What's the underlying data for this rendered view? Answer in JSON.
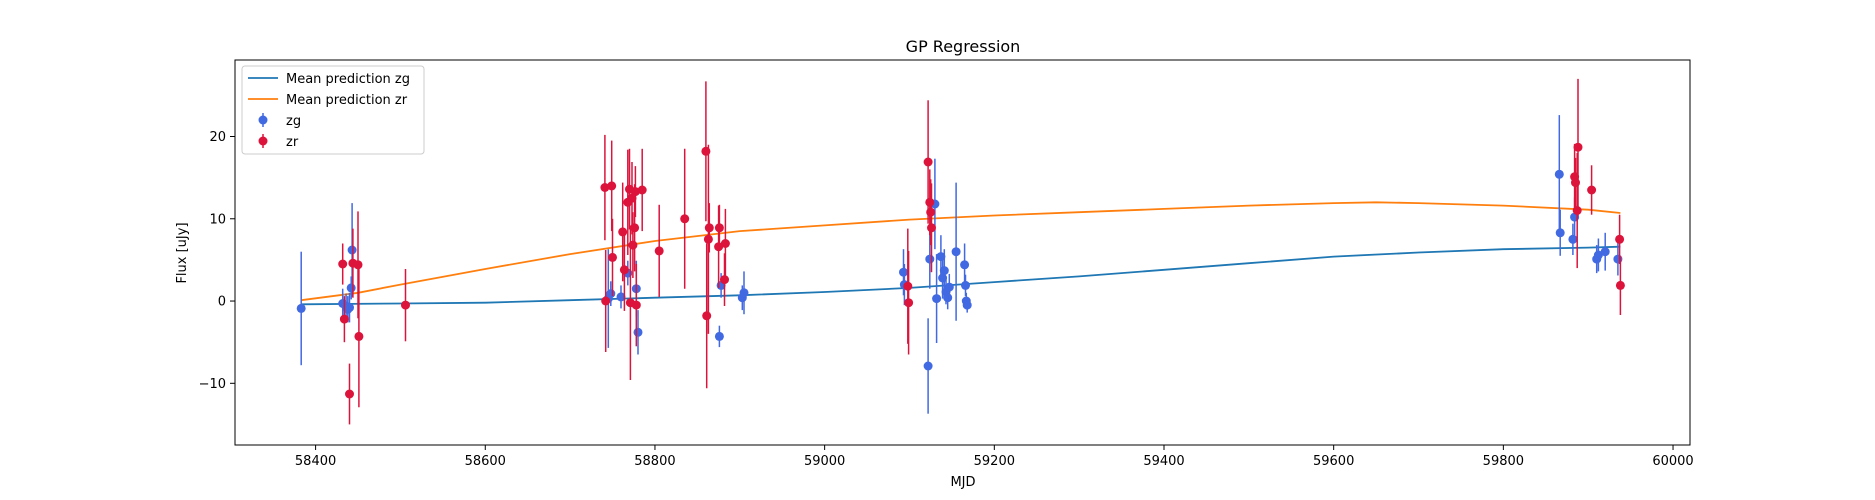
{
  "chart_data": {
    "type": "scatter",
    "title": "GP Regression",
    "xlabel": "MJD",
    "ylabel": "Flux [uJy]",
    "xlim": [
      58305,
      60020
    ],
    "ylim": [
      -17.5,
      29.3
    ],
    "xticks": [
      58400,
      58600,
      58800,
      59000,
      59200,
      59400,
      59600,
      59800,
      60000
    ],
    "yticks": [
      -10,
      0,
      10,
      20
    ],
    "grid": false,
    "legend_position": "top-left",
    "series": [
      {
        "name": "Mean prediction zg",
        "kind": "line",
        "color": "#1f77b4",
        "x": [
          58383,
          58500,
          58600,
          58700,
          58800,
          58900,
          59000,
          59100,
          59200,
          59300,
          59400,
          59500,
          59600,
          59700,
          59800,
          59900,
          59938
        ],
        "y": [
          -0.4,
          -0.3,
          -0.2,
          0.1,
          0.4,
          0.7,
          1.1,
          1.6,
          2.3,
          3.0,
          3.8,
          4.6,
          5.4,
          5.9,
          6.3,
          6.5,
          6.6
        ]
      },
      {
        "name": "Mean prediction zr",
        "kind": "line",
        "color": "#ff7f0e",
        "x": [
          58383,
          58450,
          58500,
          58600,
          58700,
          58800,
          58900,
          59000,
          59100,
          59200,
          59300,
          59400,
          59500,
          59600,
          59650,
          59700,
          59800,
          59900,
          59938
        ],
        "y": [
          0.1,
          1.0,
          2.0,
          3.9,
          5.7,
          7.3,
          8.5,
          9.2,
          9.9,
          10.4,
          10.8,
          11.2,
          11.6,
          11.9,
          12.0,
          11.9,
          11.6,
          11.1,
          10.7
        ]
      },
      {
        "name": "zg",
        "kind": "errorbar",
        "color": "#4169e1",
        "points": [
          {
            "x": 58383,
            "y": -0.9,
            "err": 6.9
          },
          {
            "x": 58432,
            "y": -0.3,
            "err": 1.8
          },
          {
            "x": 58436,
            "y": -0.6,
            "err": 1.5
          },
          {
            "x": 58438,
            "y": -1.0,
            "err": 1.6
          },
          {
            "x": 58440,
            "y": -0.8,
            "err": 1.8
          },
          {
            "x": 58442,
            "y": 1.6,
            "err": 1.4
          },
          {
            "x": 58443,
            "y": 6.2,
            "err": 5.7
          },
          {
            "x": 58745,
            "y": 0.3,
            "err": 6.0
          },
          {
            "x": 58748,
            "y": 0.9,
            "err": 1.5
          },
          {
            "x": 58760,
            "y": 0.5,
            "err": 1.4
          },
          {
            "x": 58768,
            "y": 3.4,
            "err": 1.5
          },
          {
            "x": 58778,
            "y": 1.5,
            "err": 3.4
          },
          {
            "x": 58780,
            "y": -3.8,
            "err": 2.7
          },
          {
            "x": 58876,
            "y": -4.3,
            "err": 1.3
          },
          {
            "x": 58878,
            "y": 1.9,
            "err": 1.5
          },
          {
            "x": 58903,
            "y": 0.4,
            "err": 1.5
          },
          {
            "x": 58905,
            "y": 1.0,
            "err": 2.6
          },
          {
            "x": 59093,
            "y": 3.5,
            "err": 2.8
          },
          {
            "x": 59094,
            "y": 2.0,
            "err": 2.5
          },
          {
            "x": 59122,
            "y": -7.9,
            "err": 5.8
          },
          {
            "x": 59124,
            "y": 5.1,
            "err": 3.6
          },
          {
            "x": 59130,
            "y": 11.8,
            "err": 5.5
          },
          {
            "x": 59132,
            "y": 0.3,
            "err": 5.4
          },
          {
            "x": 59137,
            "y": 5.4,
            "err": 2.6
          },
          {
            "x": 59139,
            "y": 2.8,
            "err": 2.5
          },
          {
            "x": 59141,
            "y": 3.7,
            "err": 2.6
          },
          {
            "x": 59143,
            "y": 1.1,
            "err": 1.5
          },
          {
            "x": 59145,
            "y": 0.4,
            "err": 1.4
          },
          {
            "x": 59147,
            "y": 1.7,
            "err": 1.6
          },
          {
            "x": 59155,
            "y": 6.0,
            "err": 8.4
          },
          {
            "x": 59165,
            "y": 4.4,
            "err": 2.6
          },
          {
            "x": 59166,
            "y": 1.9,
            "err": 1.3
          },
          {
            "x": 59167,
            "y": 0.0,
            "err": 1.0
          },
          {
            "x": 59168,
            "y": -0.5,
            "err": 0.9
          },
          {
            "x": 59866,
            "y": 15.4,
            "err": 7.2
          },
          {
            "x": 59867,
            "y": 8.3,
            "err": 2.8
          },
          {
            "x": 59882,
            "y": 7.5,
            "err": 1.9
          },
          {
            "x": 59884,
            "y": 10.2,
            "err": 2.4
          },
          {
            "x": 59910,
            "y": 5.1,
            "err": 1.7
          },
          {
            "x": 59912,
            "y": 5.6,
            "err": 2.0
          },
          {
            "x": 59920,
            "y": 6.0,
            "err": 2.3
          },
          {
            "x": 59935,
            "y": 5.1,
            "err": 2.0
          }
        ]
      },
      {
        "name": "zr",
        "kind": "errorbar",
        "color": "#dc143c",
        "points": [
          {
            "x": 58432,
            "y": 4.5,
            "err": 2.5
          },
          {
            "x": 58434,
            "y": -2.2,
            "err": 2.8
          },
          {
            "x": 58440,
            "y": -11.3,
            "err": 3.7
          },
          {
            "x": 58444,
            "y": 4.6,
            "err": 4.2
          },
          {
            "x": 58450,
            "y": 4.4,
            "err": 6.5
          },
          {
            "x": 58451,
            "y": -4.3,
            "err": 8.6
          },
          {
            "x": 58506,
            "y": -0.5,
            "err": 4.4
          },
          {
            "x": 58741,
            "y": 13.8,
            "err": 6.4
          },
          {
            "x": 58742,
            "y": 0.0,
            "err": 6.2
          },
          {
            "x": 58749,
            "y": 14.0,
            "err": 5.5
          },
          {
            "x": 58750,
            "y": 5.3,
            "err": 4.7
          },
          {
            "x": 58762,
            "y": 8.4,
            "err": 6.0
          },
          {
            "x": 58764,
            "y": 3.8,
            "err": 5.0
          },
          {
            "x": 58768,
            "y": 12.0,
            "err": 6.4
          },
          {
            "x": 58770,
            "y": 13.6,
            "err": 4.9
          },
          {
            "x": 58771,
            "y": -0.2,
            "err": 9.4
          },
          {
            "x": 58773,
            "y": 12.5,
            "err": 4.4
          },
          {
            "x": 58774,
            "y": 6.8,
            "err": 4.0
          },
          {
            "x": 58776,
            "y": 8.9,
            "err": 5.3
          },
          {
            "x": 58777,
            "y": 13.3,
            "err": 3.1
          },
          {
            "x": 58778,
            "y": -0.5,
            "err": 5.0
          },
          {
            "x": 58785,
            "y": 13.5,
            "err": 5.0
          },
          {
            "x": 58805,
            "y": 6.1,
            "err": 5.6
          },
          {
            "x": 58835,
            "y": 10.0,
            "err": 8.5
          },
          {
            "x": 58860,
            "y": 18.2,
            "err": 8.5
          },
          {
            "x": 58861,
            "y": -1.8,
            "err": 8.8
          },
          {
            "x": 58863,
            "y": 7.5,
            "err": 11.5
          },
          {
            "x": 58864,
            "y": 8.9,
            "err": 3.0
          },
          {
            "x": 58875,
            "y": 6.6,
            "err": 5.0
          },
          {
            "x": 58876,
            "y": 8.9,
            "err": 2.8
          },
          {
            "x": 58882,
            "y": 2.6,
            "err": 3.2
          },
          {
            "x": 58883,
            "y": 7.0,
            "err": 4.2
          },
          {
            "x": 59098,
            "y": 1.8,
            "err": 7.0
          },
          {
            "x": 59099,
            "y": -0.2,
            "err": 6.3
          },
          {
            "x": 59122,
            "y": 16.9,
            "err": 7.5
          },
          {
            "x": 59124,
            "y": 12.0,
            "err": 4.0
          },
          {
            "x": 59125,
            "y": 10.8,
            "err": 4.0
          },
          {
            "x": 59126,
            "y": 8.9,
            "err": 5.4
          },
          {
            "x": 59884,
            "y": 15.1,
            "err": 4.0
          },
          {
            "x": 59885,
            "y": 14.4,
            "err": 3.0
          },
          {
            "x": 59887,
            "y": 11.0,
            "err": 7.0
          },
          {
            "x": 59888,
            "y": 18.7,
            "err": 8.3
          },
          {
            "x": 59904,
            "y": 13.5,
            "err": 3.0
          },
          {
            "x": 59937,
            "y": 7.5,
            "err": 3.0
          },
          {
            "x": 59938,
            "y": 1.9,
            "err": 3.6
          }
        ]
      }
    ]
  }
}
